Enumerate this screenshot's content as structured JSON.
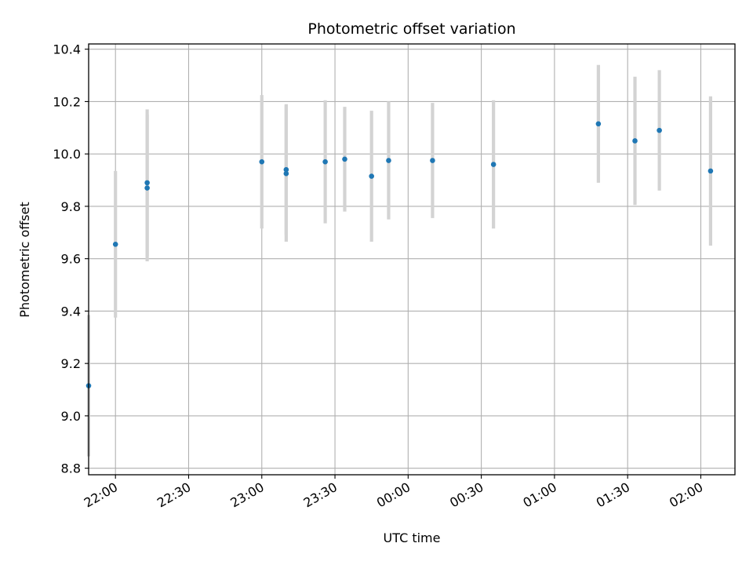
{
  "chart_data": {
    "type": "scatter",
    "title": "Photometric offset variation",
    "xlabel": "UTC time",
    "ylabel": "Photometric offset",
    "xlim": [
      "21:49",
      "02:14"
    ],
    "ylim": [
      8.775,
      10.42
    ],
    "x_ticks": [
      "22:00",
      "22:30",
      "23:00",
      "23:30",
      "00:00",
      "00:30",
      "01:00",
      "01:30",
      "02:00"
    ],
    "y_ticks": [
      8.8,
      9.0,
      9.2,
      9.4,
      9.6,
      9.8,
      10.0,
      10.2,
      10.4
    ],
    "y_tick_labels": [
      "8.8",
      "9.0",
      "9.2",
      "9.4",
      "9.6",
      "9.8",
      "10.0",
      "10.2",
      "10.4"
    ],
    "grid": true,
    "series": [
      {
        "marker_color": "#1f77b4",
        "error_bar_color": "#d3d3d3",
        "points": [
          {
            "x": "21:49",
            "y": 9.115,
            "err": 0.27
          },
          {
            "x": "22:00",
            "y": 9.655,
            "err": 0.28
          },
          {
            "x": "22:13",
            "y": 9.87,
            "err": 0.28
          },
          {
            "x": "22:13",
            "y": 9.89,
            "err": 0.28
          },
          {
            "x": "23:00",
            "y": 9.97,
            "err": 0.255
          },
          {
            "x": "23:10",
            "y": 9.925,
            "err": 0.26
          },
          {
            "x": "23:10",
            "y": 9.94,
            "err": 0.25
          },
          {
            "x": "23:26",
            "y": 9.97,
            "err": 0.235
          },
          {
            "x": "23:34",
            "y": 9.98,
            "err": 0.2
          },
          {
            "x": "23:45",
            "y": 9.915,
            "err": 0.25
          },
          {
            "x": "23:52",
            "y": 9.975,
            "err": 0.225
          },
          {
            "x": "00:10",
            "y": 9.975,
            "err": 0.22
          },
          {
            "x": "00:35",
            "y": 9.96,
            "err": 0.245
          },
          {
            "x": "01:18",
            "y": 10.115,
            "err": 0.225
          },
          {
            "x": "01:33",
            "y": 10.05,
            "err": 0.245
          },
          {
            "x": "01:43",
            "y": 10.09,
            "err": 0.23
          },
          {
            "x": "02:04",
            "y": 9.935,
            "err": 0.285
          }
        ]
      }
    ]
  }
}
